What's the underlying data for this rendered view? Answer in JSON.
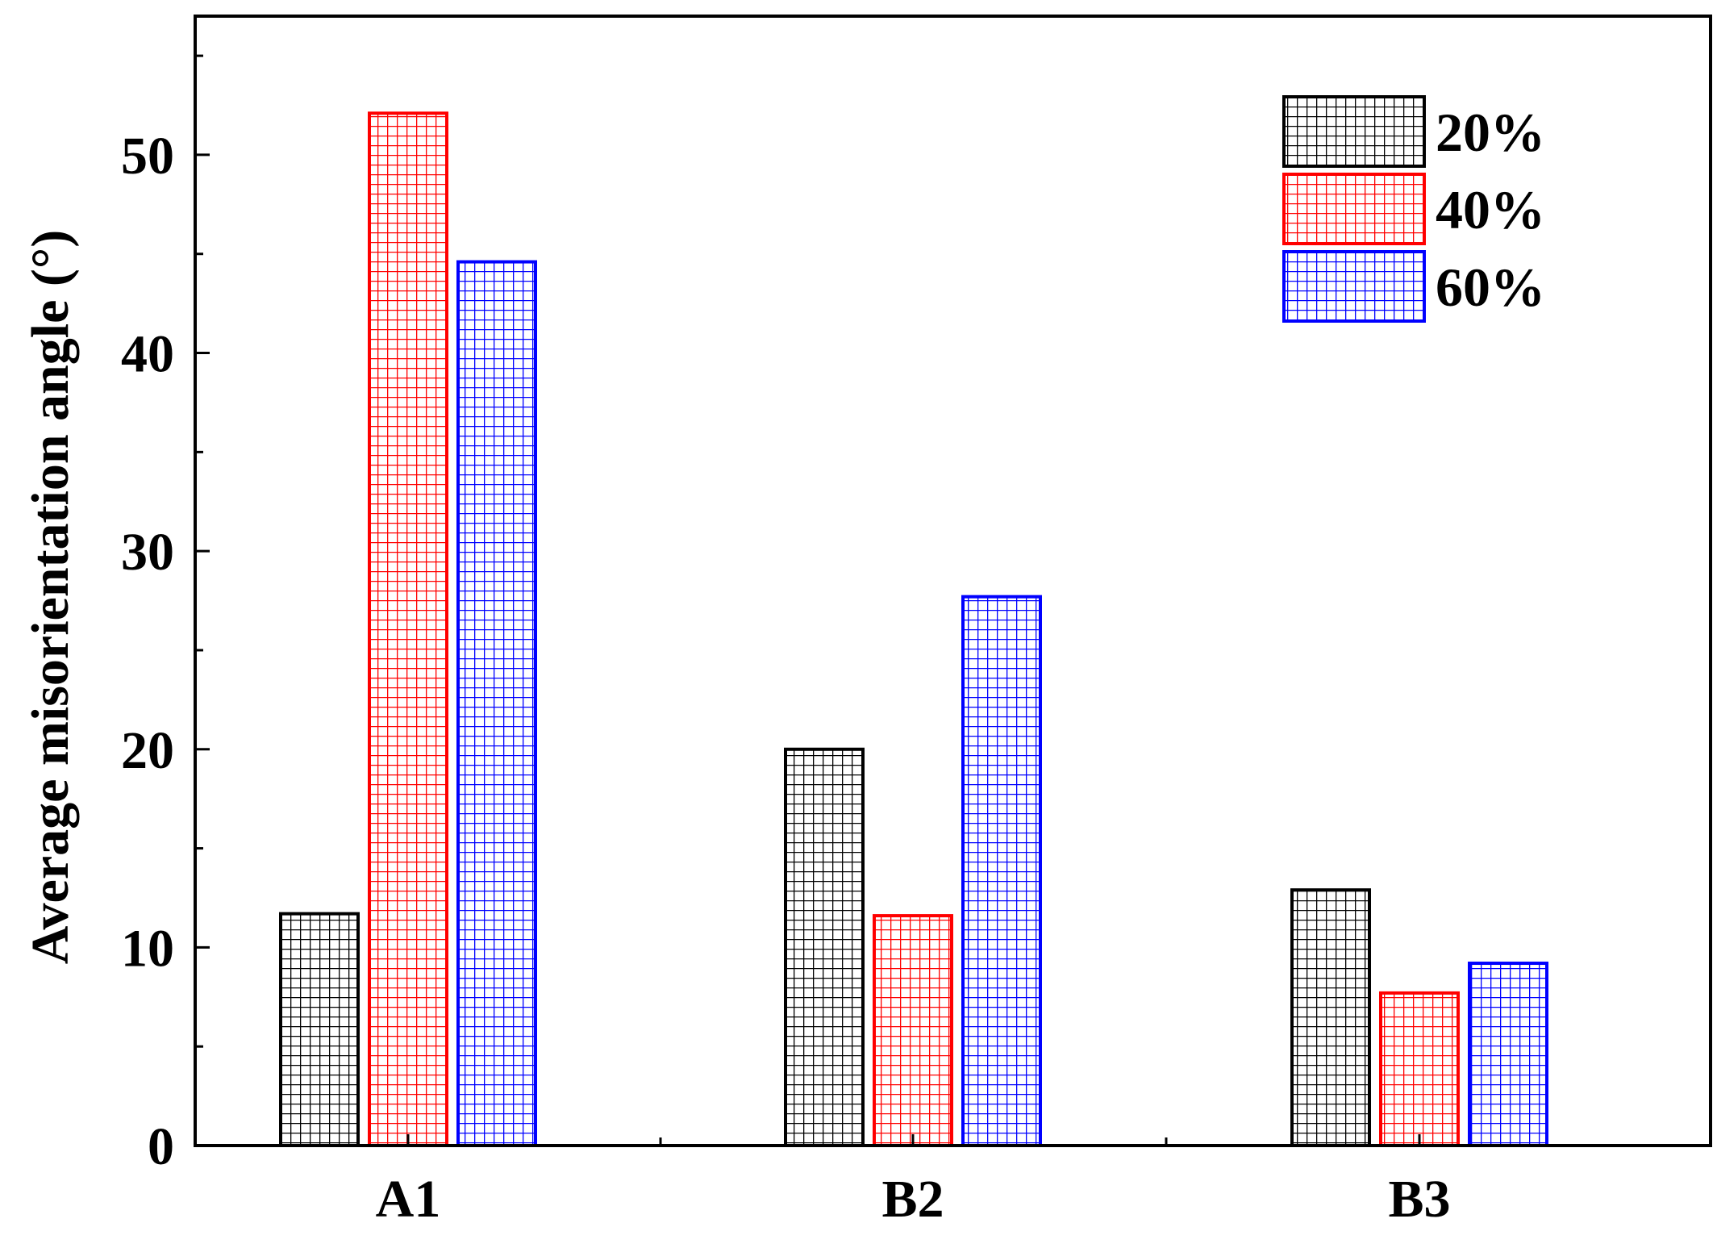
{
  "chart_data": {
    "type": "bar",
    "title": "",
    "xlabel": "",
    "ylabel": "Average misorientation angle (°)",
    "categories": [
      "A1",
      "B2",
      "B3"
    ],
    "series": [
      {
        "name": "20%",
        "color": "#000000",
        "values": [
          11.7,
          20.0,
          12.9
        ]
      },
      {
        "name": "40%",
        "color": "#ff0000",
        "values": [
          52.1,
          11.6,
          7.7
        ]
      },
      {
        "name": "60%",
        "color": "#0000ff",
        "values": [
          44.6,
          27.7,
          9.2
        ]
      }
    ],
    "ylim": [
      0,
      57
    ],
    "yticks": [
      {
        "value": 0,
        "label": "0"
      },
      {
        "value": 10,
        "label": "10"
      },
      {
        "value": 20,
        "label": "20"
      },
      {
        "value": 30,
        "label": "30"
      },
      {
        "value": 40,
        "label": "40"
      },
      {
        "value": 50,
        "label": "50"
      }
    ],
    "minor_tick_step": 5,
    "legend_position": "top-right",
    "grid": false,
    "bar_pattern": "grid-hatch"
  }
}
